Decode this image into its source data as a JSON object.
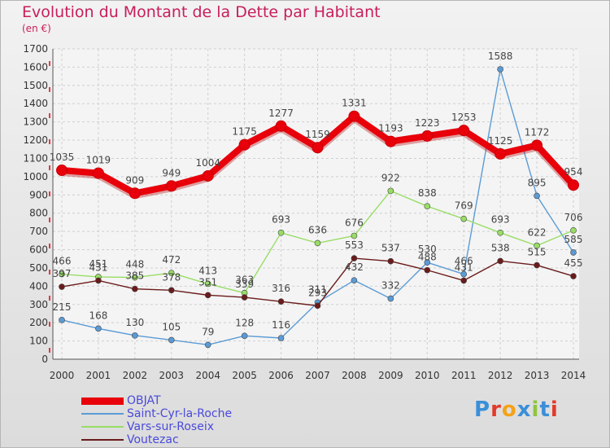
{
  "header": {
    "title": "Evolution du Montant de la Dette par Habitant",
    "unit": "(en €)"
  },
  "brand": {
    "logo": "Proxiti",
    "logo_colors": [
      "#3a8fd8",
      "#e23a2a",
      "#f4a21a",
      "#3a8fd8",
      "#8dc63f",
      "#3a8fd8",
      "#e23a2a"
    ]
  },
  "chart_data": {
    "type": "line",
    "x": [
      "2000",
      "2001",
      "2002",
      "2003",
      "2004",
      "2005",
      "2006",
      "2007",
      "2008",
      "2009",
      "2010",
      "2011",
      "2012",
      "2013",
      "2014"
    ],
    "ylim": [
      0,
      1700
    ],
    "yticks": [
      0,
      100,
      200,
      300,
      400,
      500,
      600,
      700,
      800,
      900,
      1000,
      1100,
      1200,
      1300,
      1400,
      1500,
      1600,
      1700
    ],
    "grid": true,
    "legend": "bottom-left",
    "series": [
      {
        "name": "OBJAT",
        "color": "#e8000a",
        "values": [
          1035,
          1019,
          909,
          949,
          1004,
          1175,
          1277,
          1159,
          1331,
          1193,
          1223,
          1253,
          1125,
          1172,
          954
        ]
      },
      {
        "name": "Saint-Cyr-la-Roche",
        "color": "#5b9bd5",
        "values": [
          215,
          168,
          130,
          105,
          79,
          128,
          116,
          311,
          432,
          332,
          530,
          466,
          1588,
          895,
          585
        ]
      },
      {
        "name": "Vars-sur-Roseix",
        "color": "#99dd66",
        "values": [
          466,
          451,
          448,
          472,
          413,
          363,
          693,
          636,
          676,
          922,
          838,
          769,
          693,
          622,
          706
        ]
      },
      {
        "name": "Voutezac",
        "color": "#6b1b1b",
        "values": [
          397,
          431,
          385,
          378,
          351,
          339,
          316,
          293,
          553,
          537,
          488,
          431,
          538,
          515,
          455
        ]
      }
    ]
  }
}
